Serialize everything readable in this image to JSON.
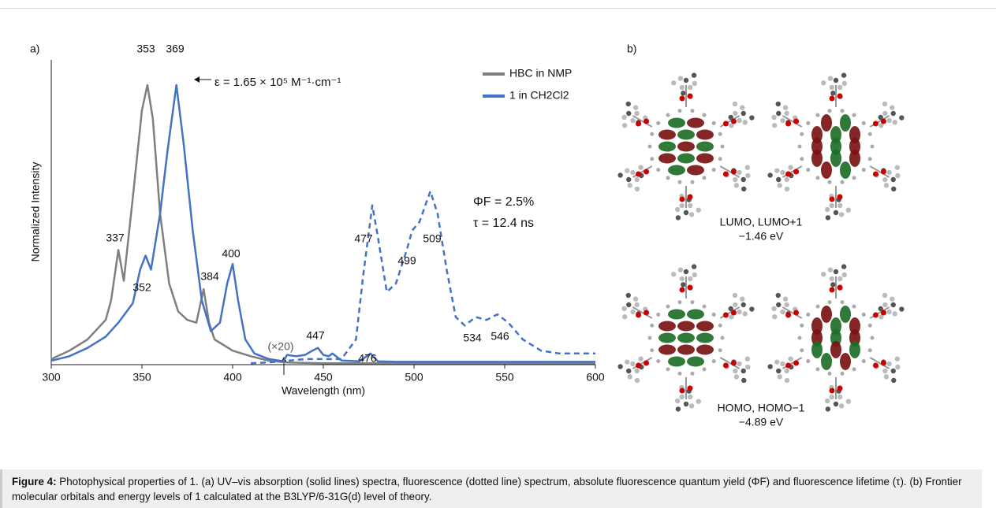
{
  "chart_data": {
    "type": "line",
    "panel_label": "a)",
    "xlabel": "Wavelength (nm)",
    "ylabel": "Normalized Intensity",
    "xlim": [
      300,
      600
    ],
    "xticks": [
      300,
      350,
      400,
      450,
      500,
      550,
      600
    ],
    "ylim": [
      0,
      1.09
    ],
    "legend": "upper right",
    "series": [
      {
        "name": "HBC in NMP",
        "color": "#7f7f7f",
        "dashed": false,
        "x": [
          300,
          310,
          320,
          330,
          333,
          337,
          340,
          345,
          350,
          353,
          356,
          360,
          365,
          370,
          375,
          380,
          384,
          387,
          390,
          400,
          410,
          420,
          430,
          450,
          500,
          600
        ],
        "values": [
          0.02,
          0.05,
          0.09,
          0.16,
          0.23,
          0.41,
          0.3,
          0.6,
          0.91,
          1.0,
          0.88,
          0.54,
          0.29,
          0.19,
          0.16,
          0.15,
          0.27,
          0.15,
          0.09,
          0.05,
          0.03,
          0.014,
          0.008,
          0.005,
          0.005,
          0.005
        ]
      },
      {
        "name": "1 in CH2Cl2",
        "color": "#4472c4",
        "dashed": false,
        "x": [
          300,
          310,
          320,
          330,
          337,
          345,
          349,
          352,
          355,
          360,
          364,
          369,
          373,
          378,
          383,
          388,
          393,
          397,
          400,
          403,
          407,
          412,
          420,
          428,
          430,
          435,
          440,
          444,
          447,
          450,
          453,
          455,
          460,
          470,
          476,
          480,
          490,
          600
        ],
        "values": [
          0.014,
          0.03,
          0.06,
          0.1,
          0.15,
          0.22,
          0.34,
          0.39,
          0.34,
          0.54,
          0.76,
          1.0,
          0.79,
          0.48,
          0.23,
          0.12,
          0.15,
          0.29,
          0.36,
          0.23,
          0.09,
          0.04,
          0.02,
          0.012,
          0.035,
          0.03,
          0.035,
          0.05,
          0.06,
          0.035,
          0.03,
          0.04,
          0.015,
          0.012,
          0.04,
          0.012,
          0.01,
          0.01
        ]
      },
      {
        "color": "#4472c4",
        "dashed": true,
        "x": [
          410,
          420,
          440,
          460,
          468,
          472,
          477,
          480,
          485,
          490,
          496,
          499,
          503,
          509,
          513,
          518,
          523,
          528,
          534,
          540,
          546,
          552,
          560,
          570,
          580,
          600
        ],
        "values": [
          0.005,
          0.008,
          0.02,
          0.02,
          0.09,
          0.32,
          0.57,
          0.46,
          0.26,
          0.29,
          0.41,
          0.48,
          0.51,
          0.62,
          0.54,
          0.34,
          0.17,
          0.14,
          0.17,
          0.16,
          0.18,
          0.15,
          0.09,
          0.05,
          0.04,
          0.04
        ]
      }
    ],
    "peak_labels": [
      353,
      369,
      337,
      352,
      384,
      400,
      447,
      476,
      477,
      499,
      509,
      534,
      546
    ],
    "annotations": [
      "ε = 1.65 × 10⁵ M⁻¹·cm⁻¹",
      "(×20)",
      "ΦF = 2.5%",
      "τ = 12.4 ns"
    ]
  },
  "orbitals": {
    "panel_label": "b)",
    "levels": [
      {
        "name": "LUMO, LUMO+1",
        "energy": "−1.46 eV"
      },
      {
        "name": "HOMO, HOMO−1",
        "energy": "−4.89 eV"
      }
    ]
  },
  "caption": {
    "label": "Figure 4:",
    "text": "Photophysical properties of 1. (a) UV–vis absorption (solid lines) spectra, fluorescence (dotted line) spectrum, absolute fluorescence quantum yield (ΦF) and fluorescence lifetime (τ). (b) Frontier molecular orbitals and energy levels of 1 calculated at the B3LYP/6-31G(d) level of theory."
  }
}
